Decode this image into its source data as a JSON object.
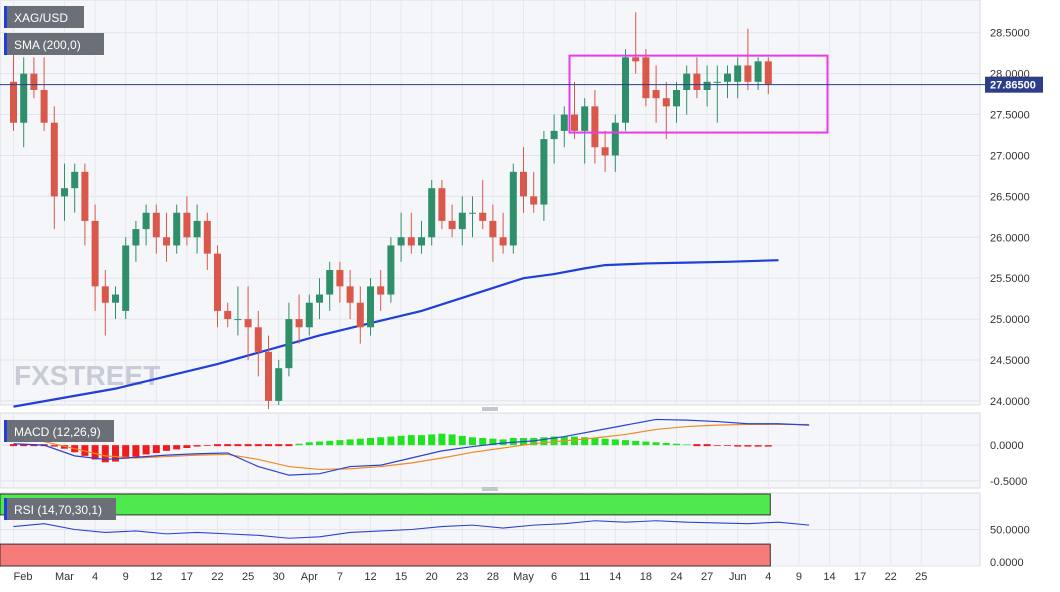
{
  "chart_data": [
    {
      "type": "candlestick",
      "symbol": "XAG/USD",
      "indicator_label": "SMA (200,0)",
      "last_price_label": "27.86500",
      "last_price": 27.865,
      "ylim": [
        23.95,
        28.9
      ],
      "yticks": [
        "24.0000",
        "24.5000",
        "25.0000",
        "25.5000",
        "26.0000",
        "26.5000",
        "27.0000",
        "27.5000",
        "28.0000",
        "28.5000"
      ],
      "ytick_values": [
        24,
        24.5,
        25,
        25.5,
        26,
        26.5,
        27,
        27.5,
        28,
        28.5
      ],
      "watermark": "FXSTREET",
      "range_box": {
        "from_index": 55,
        "to_index": 80,
        "low": 27.28,
        "high": 28.22,
        "color": "#e83ae8"
      },
      "colors": {
        "up": "#2f8f6a",
        "down": "#d9584a",
        "sma": "#1f3fd8",
        "last_line": "#2c3e88"
      },
      "candles": [
        [
          27.9,
          28.3,
          27.3,
          27.4
        ],
        [
          27.4,
          28.2,
          27.1,
          28.0
        ],
        [
          28.0,
          28.2,
          27.7,
          27.8
        ],
        [
          27.8,
          28.2,
          27.3,
          27.4
        ],
        [
          27.4,
          27.6,
          26.1,
          26.5
        ],
        [
          26.5,
          26.9,
          26.2,
          26.6
        ],
        [
          26.6,
          26.9,
          26.3,
          26.8
        ],
        [
          26.8,
          26.9,
          25.9,
          26.2
        ],
        [
          26.2,
          26.4,
          25.1,
          25.4
        ],
        [
          25.4,
          25.6,
          24.8,
          25.2
        ],
        [
          25.2,
          25.4,
          25.0,
          25.3
        ],
        [
          25.1,
          26.0,
          25.0,
          25.9
        ],
        [
          25.9,
          26.2,
          25.7,
          26.1
        ],
        [
          26.1,
          26.4,
          25.9,
          26.3
        ],
        [
          26.3,
          26.4,
          25.8,
          26.0
        ],
        [
          26.0,
          26.3,
          25.7,
          25.9
        ],
        [
          25.9,
          26.4,
          25.8,
          26.3
        ],
        [
          26.3,
          26.5,
          25.9,
          26.0
        ],
        [
          26.0,
          26.4,
          25.8,
          26.2
        ],
        [
          26.2,
          26.3,
          25.6,
          25.8
        ],
        [
          25.8,
          25.9,
          24.9,
          25.1
        ],
        [
          25.1,
          25.2,
          24.9,
          25.0
        ],
        [
          25.0,
          25.4,
          24.8,
          25.0
        ],
        [
          25.0,
          25.4,
          24.5,
          24.9
        ],
        [
          24.9,
          25.1,
          24.3,
          24.6
        ],
        [
          24.6,
          24.8,
          23.9,
          24.0
        ],
        [
          24.0,
          24.5,
          23.95,
          24.4
        ],
        [
          24.4,
          25.2,
          24.3,
          25.0
        ],
        [
          25.0,
          25.3,
          24.7,
          24.9
        ],
        [
          24.9,
          25.3,
          24.8,
          25.2
        ],
        [
          25.2,
          25.5,
          25.0,
          25.3
        ],
        [
          25.3,
          25.7,
          25.1,
          25.6
        ],
        [
          25.6,
          25.7,
          25.2,
          25.4
        ],
        [
          25.4,
          25.6,
          25.0,
          25.2
        ],
        [
          25.2,
          25.4,
          24.7,
          24.9
        ],
        [
          24.9,
          25.5,
          24.8,
          25.4
        ],
        [
          25.4,
          25.6,
          25.1,
          25.3
        ],
        [
          25.3,
          26.0,
          25.2,
          25.9
        ],
        [
          25.9,
          26.3,
          25.7,
          26.0
        ],
        [
          26.0,
          26.3,
          25.8,
          25.9
        ],
        [
          25.9,
          26.2,
          25.8,
          26.0
        ],
        [
          26.0,
          26.7,
          25.9,
          26.6
        ],
        [
          26.6,
          26.7,
          26.1,
          26.2
        ],
        [
          26.2,
          26.4,
          26.0,
          26.1
        ],
        [
          26.1,
          26.5,
          25.9,
          26.3
        ],
        [
          26.3,
          26.5,
          26.0,
          26.3
        ],
        [
          26.3,
          26.7,
          26.1,
          26.2
        ],
        [
          26.2,
          26.4,
          25.7,
          26.0
        ],
        [
          26.0,
          26.3,
          25.8,
          25.9
        ],
        [
          25.9,
          26.9,
          25.8,
          26.8
        ],
        [
          26.8,
          27.1,
          26.3,
          26.5
        ],
        [
          26.5,
          26.8,
          26.3,
          26.4
        ],
        [
          26.4,
          27.3,
          26.2,
          27.2
        ],
        [
          27.2,
          27.5,
          26.9,
          27.3
        ],
        [
          27.3,
          27.6,
          27.1,
          27.5
        ],
        [
          27.5,
          27.9,
          27.2,
          27.3
        ],
        [
          27.3,
          27.7,
          26.9,
          27.6
        ],
        [
          27.6,
          27.8,
          26.9,
          27.1
        ],
        [
          27.1,
          27.3,
          26.8,
          27.0
        ],
        [
          27.0,
          27.5,
          26.8,
          27.4
        ],
        [
          27.4,
          28.3,
          27.3,
          28.2
        ],
        [
          28.2,
          28.75,
          28.0,
          28.15
        ],
        [
          28.2,
          28.3,
          27.6,
          27.7
        ],
        [
          27.8,
          28.1,
          27.4,
          27.7
        ],
        [
          27.7,
          27.9,
          27.2,
          27.6
        ],
        [
          27.6,
          27.9,
          27.4,
          27.8
        ],
        [
          27.8,
          28.1,
          27.5,
          28.0
        ],
        [
          28.0,
          28.2,
          27.7,
          27.8
        ],
        [
          27.8,
          28.1,
          27.6,
          27.9
        ],
        [
          27.9,
          28.1,
          27.4,
          27.9
        ],
        [
          27.9,
          28.1,
          27.7,
          28.0
        ],
        [
          27.9,
          28.2,
          27.7,
          28.1
        ],
        [
          28.1,
          28.55,
          27.8,
          27.9
        ],
        [
          27.9,
          28.2,
          27.8,
          28.15
        ],
        [
          28.15,
          28.2,
          27.75,
          27.87
        ]
      ],
      "sma": [
        [
          0,
          23.93
        ],
        [
          10,
          24.15
        ],
        [
          20,
          24.45
        ],
        [
          30,
          24.8
        ],
        [
          40,
          25.1
        ],
        [
          45,
          25.3
        ],
        [
          50,
          25.5
        ],
        [
          53,
          25.55
        ],
        [
          56,
          25.62
        ],
        [
          58,
          25.66
        ],
        [
          62,
          25.68
        ],
        [
          66,
          25.69
        ],
        [
          70,
          25.7
        ],
        [
          75,
          25.72
        ]
      ],
      "x_axis_labels": [
        {
          "i": 0,
          "text": "Feb"
        },
        {
          "i": 5,
          "text": "Mar"
        },
        {
          "i": 8,
          "text": "4"
        },
        {
          "i": 11,
          "text": "9"
        },
        {
          "i": 14,
          "text": "12"
        },
        {
          "i": 17,
          "text": "17"
        },
        {
          "i": 20,
          "text": "22"
        },
        {
          "i": 23,
          "text": "25"
        },
        {
          "i": 26,
          "text": "30"
        },
        {
          "i": 29,
          "text": "Apr"
        },
        {
          "i": 32,
          "text": "7"
        },
        {
          "i": 35,
          "text": "12"
        },
        {
          "i": 38,
          "text": "15"
        },
        {
          "i": 41,
          "text": "20"
        },
        {
          "i": 44,
          "text": "23"
        },
        {
          "i": 47,
          "text": "28"
        },
        {
          "i": 50,
          "text": "May"
        },
        {
          "i": 53,
          "text": "6"
        },
        {
          "i": 56,
          "text": "11"
        },
        {
          "i": 59,
          "text": "14"
        },
        {
          "i": 62,
          "text": "18"
        },
        {
          "i": 65,
          "text": "24"
        },
        {
          "i": 68,
          "text": "27"
        },
        {
          "i": 71,
          "text": "Jun"
        },
        {
          "i": 74,
          "text": "4"
        },
        {
          "i": 77,
          "text": "9"
        },
        {
          "i": 80,
          "text": "14"
        },
        {
          "i": 83,
          "text": "17"
        },
        {
          "i": 86,
          "text": "22"
        },
        {
          "i": 89,
          "text": "25"
        }
      ]
    },
    {
      "type": "macd",
      "label": "MACD (12,26,9)",
      "ylim": [
        -0.6,
        0.45
      ],
      "yticks": [
        "0.0000",
        "-0.5000"
      ],
      "ytick_values": [
        0,
        -0.5
      ],
      "colors": {
        "pos": "#22e322",
        "neg": "#ee1c1c",
        "macd": "#2a42d4",
        "signal": "#f08a24"
      },
      "histogram": [
        0,
        0,
        0,
        0,
        -0.02,
        -0.05,
        -0.1,
        -0.15,
        -0.2,
        -0.24,
        -0.23,
        -0.19,
        -0.16,
        -0.13,
        -0.11,
        -0.08,
        -0.06,
        -0.04,
        -0.02,
        -0.01,
        0,
        0,
        0,
        0,
        0,
        0,
        0,
        0,
        0.02,
        0.04,
        0.05,
        0.06,
        0.07,
        0.08,
        0.09,
        0.1,
        0.11,
        0.12,
        0.13,
        0.14,
        0.14,
        0.15,
        0.16,
        0.15,
        0.13,
        0.11,
        0.1,
        0.09,
        0.08,
        0.1,
        0.1,
        0.1,
        0.11,
        0.12,
        0.12,
        0.12,
        0.11,
        0.1,
        0.09,
        0.08,
        0.07,
        0.06,
        0.05,
        0.04,
        0.03,
        0.02,
        0.01,
        0,
        0,
        -0.01,
        -0.01,
        -0.02,
        -0.02,
        -0.02,
        -0.02
      ],
      "macd": [
        [
          0,
          0.02
        ],
        [
          3,
          0
        ],
        [
          6,
          -0.15
        ],
        [
          9,
          -0.2
        ],
        [
          12,
          -0.17
        ],
        [
          15,
          -0.14
        ],
        [
          18,
          -0.12
        ],
        [
          21,
          -0.11
        ],
        [
          24,
          -0.3
        ],
        [
          27,
          -0.42
        ],
        [
          30,
          -0.4
        ],
        [
          33,
          -0.3
        ],
        [
          36,
          -0.28
        ],
        [
          39,
          -0.18
        ],
        [
          42,
          -0.08
        ],
        [
          45,
          -0.02
        ],
        [
          48,
          0.03
        ],
        [
          51,
          0.06
        ],
        [
          54,
          0.12
        ],
        [
          57,
          0.2
        ],
        [
          60,
          0.28
        ],
        [
          63,
          0.36
        ],
        [
          66,
          0.35
        ],
        [
          69,
          0.33
        ],
        [
          72,
          0.3
        ],
        [
          75,
          0.3
        ],
        [
          78,
          0.28
        ]
      ],
      "signal": [
        [
          0,
          0.06
        ],
        [
          3,
          0.05
        ],
        [
          6,
          -0.05
        ],
        [
          9,
          -0.15
        ],
        [
          12,
          -0.18
        ],
        [
          15,
          -0.16
        ],
        [
          18,
          -0.14
        ],
        [
          21,
          -0.13
        ],
        [
          24,
          -0.2
        ],
        [
          27,
          -0.3
        ],
        [
          30,
          -0.34
        ],
        [
          33,
          -0.33
        ],
        [
          36,
          -0.3
        ],
        [
          39,
          -0.25
        ],
        [
          42,
          -0.18
        ],
        [
          45,
          -0.1
        ],
        [
          48,
          -0.04
        ],
        [
          51,
          0.02
        ],
        [
          54,
          0.06
        ],
        [
          57,
          0.1
        ],
        [
          60,
          0.15
        ],
        [
          63,
          0.22
        ],
        [
          66,
          0.26
        ],
        [
          69,
          0.28
        ],
        [
          72,
          0.29
        ],
        [
          75,
          0.29
        ],
        [
          78,
          0.29
        ]
      ]
    },
    {
      "type": "rsi",
      "label": "RSI (14,70,30,1)",
      "ylim": [
        0,
        100
      ],
      "yticks": [
        "50.0000",
        "0.0000"
      ],
      "ytick_values": [
        50,
        0
      ],
      "levels": {
        "upper": 70,
        "lower": 30
      },
      "colors": {
        "overbought": "#4fe84f",
        "oversold": "#f57a7a",
        "line": "#2a42d4"
      },
      "values": [
        [
          0,
          54
        ],
        [
          3,
          58
        ],
        [
          6,
          50
        ],
        [
          9,
          46
        ],
        [
          12,
          48
        ],
        [
          15,
          44
        ],
        [
          18,
          46
        ],
        [
          21,
          44
        ],
        [
          24,
          42
        ],
        [
          27,
          38
        ],
        [
          30,
          40
        ],
        [
          33,
          46
        ],
        [
          36,
          48
        ],
        [
          39,
          50
        ],
        [
          42,
          54
        ],
        [
          45,
          56
        ],
        [
          48,
          52
        ],
        [
          51,
          56
        ],
        [
          54,
          58
        ],
        [
          57,
          62
        ],
        [
          60,
          60
        ],
        [
          63,
          62
        ],
        [
          66,
          60
        ],
        [
          69,
          59
        ],
        [
          72,
          58
        ],
        [
          75,
          60
        ],
        [
          78,
          56
        ]
      ]
    }
  ]
}
